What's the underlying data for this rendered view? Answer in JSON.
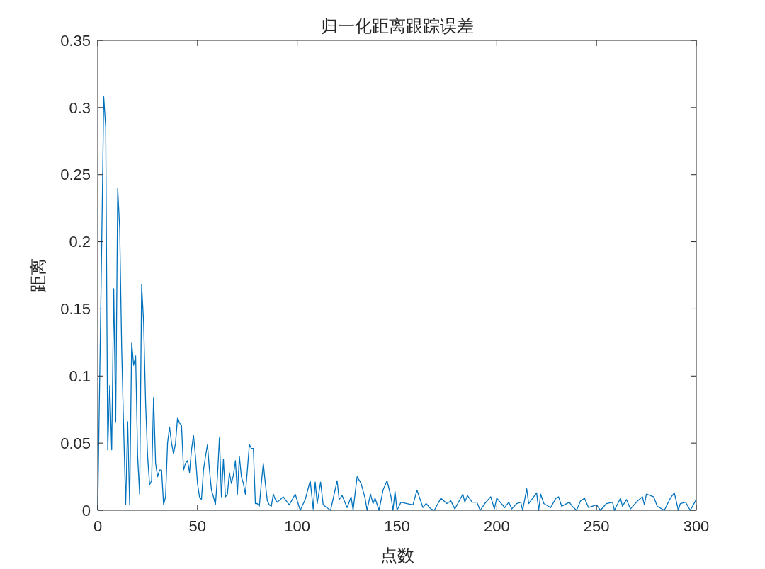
{
  "chart_data": {
    "type": "line",
    "title": "归一化距离跟踪误差",
    "xlabel": "点数",
    "ylabel": "距离",
    "xlim": [
      0,
      300
    ],
    "ylim": [
      0,
      0.35
    ],
    "xticks": [
      0,
      50,
      100,
      150,
      200,
      250,
      300
    ],
    "yticks": [
      0,
      0.05,
      0.1,
      0.15,
      0.2,
      0.25,
      0.3,
      0.35
    ],
    "marker": "none",
    "line_style": "solid",
    "series": [
      {
        "color": "#0072bd",
        "x": [
          0,
          1,
          2,
          3,
          4,
          5,
          6,
          7,
          8,
          9,
          10,
          11,
          12,
          13,
          14,
          15,
          16,
          17,
          18,
          19,
          20,
          21,
          22,
          23,
          24,
          25,
          26,
          27,
          28,
          29,
          30,
          31,
          32,
          33,
          34,
          35,
          36,
          37,
          38,
          39,
          40,
          41,
          42,
          43,
          44,
          45,
          46,
          47,
          48,
          49,
          50,
          51,
          52,
          53,
          54,
          55,
          56,
          57,
          58,
          59,
          60,
          61,
          62,
          63,
          64,
          65,
          66,
          67,
          68,
          69,
          70,
          71,
          72,
          73,
          74,
          75,
          76,
          77,
          78,
          79,
          80,
          81,
          82,
          83,
          84,
          85,
          86,
          87,
          88,
          89,
          90,
          93,
          96,
          99,
          101.5,
          104,
          106.5,
          108,
          109,
          110,
          111.7,
          113,
          116.7,
          120,
          121,
          122.5,
          125,
          127,
          128,
          130,
          132,
          134,
          135,
          136.7,
          138,
          139,
          141,
          143,
          145,
          147,
          148,
          149,
          150,
          152,
          155,
          158,
          160,
          163,
          164.6,
          167,
          168.7,
          172,
          175,
          177,
          179,
          183,
          184,
          185.3,
          187.7,
          190,
          191.7,
          194,
          197,
          198.8,
          200,
          204,
          206,
          207.5,
          210,
          212,
          213,
          215,
          216,
          220,
          221,
          222,
          223.6,
          227,
          229.7,
          231,
          232.5,
          236.4,
          237.8,
          240,
          242,
          244,
          246,
          250,
          252,
          255,
          258,
          259,
          262,
          263,
          265,
          267,
          270.6,
          273,
          274,
          275,
          278.7,
          280.4,
          284,
          287,
          289,
          291,
          292,
          294.6,
          297,
          300
        ],
        "values": [
          0,
          0.1,
          0.2,
          0.308,
          0.285,
          0.045,
          0.093,
          0.045,
          0.165,
          0.066,
          0.24,
          0.21,
          0.12,
          0.06,
          0.004,
          0.066,
          0.004,
          0.125,
          0.108,
          0.115,
          0.04,
          0.012,
          0.168,
          0.14,
          0.08,
          0.04,
          0.019,
          0.022,
          0.084,
          0.035,
          0.025,
          0.03,
          0.03,
          0.004,
          0.01,
          0.05,
          0.062,
          0.05,
          0.042,
          0.05,
          0.069,
          0.065,
          0.063,
          0.03,
          0.035,
          0.037,
          0.028,
          0.045,
          0.056,
          0.04,
          0.02,
          0.01,
          0.008,
          0.03,
          0.04,
          0.049,
          0.03,
          0.015,
          0.01,
          0.004,
          0.025,
          0.054,
          0.01,
          0.038,
          0.01,
          0.012,
          0.028,
          0.02,
          0.026,
          0.037,
          0.012,
          0.04,
          0.025,
          0.02,
          0.012,
          0.03,
          0.049,
          0.046,
          0.046,
          0.005,
          0.005,
          0.003,
          0.02,
          0.035,
          0.02,
          0.007,
          0.004,
          0.003,
          0.012,
          0.008,
          0.006,
          0.01,
          0.004,
          0.012,
          0,
          0.008,
          0.022,
          0.001,
          0.021,
          0.005,
          0.021,
          0.004,
          0,
          0.022,
          0.008,
          0.011,
          0.002,
          0.01,
          0,
          0.025,
          0.02,
          0.009,
          0,
          0.012,
          0.005,
          0.009,
          0,
          0.015,
          0.022,
          0.01,
          0,
          0.014,
          0,
          0.006,
          0.005,
          0.004,
          0.015,
          0.002,
          0.005,
          0.001,
          0,
          0.009,
          0.005,
          0.007,
          0.001,
          0.012,
          0.006,
          0.011,
          0.006,
          0.006,
          0,
          0.005,
          0.01,
          0.001,
          0.009,
          0.002,
          0.006,
          0.001,
          0.005,
          0.006,
          0,
          0.016,
          0.005,
          0.013,
          0,
          0.012,
          0.005,
          0.002,
          0.009,
          0.01,
          0.003,
          0.006,
          0.003,
          0,
          0.007,
          0.009,
          0.002,
          0.004,
          0,
          0.005,
          0.006,
          0,
          0.009,
          0.003,
          0.008,
          0.001,
          0.007,
          0.01,
          0.004,
          0.012,
          0.01,
          0.003,
          0,
          0.009,
          0.013,
          0,
          0.005,
          0.006,
          0,
          0.008
        ]
      }
    ]
  }
}
